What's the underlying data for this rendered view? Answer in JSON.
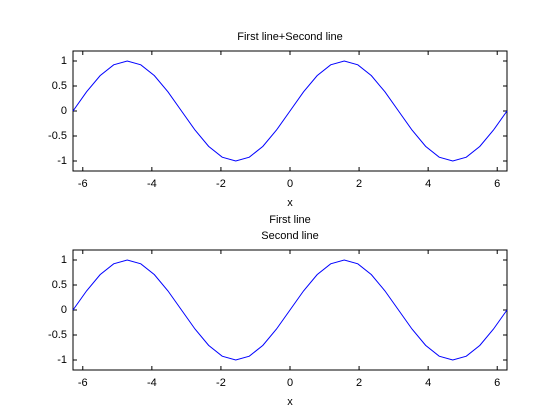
{
  "chart_data": [
    {
      "type": "line",
      "title": [
        "First line+Second line"
      ],
      "xlabel": "x",
      "x": [
        -6.2832,
        -5.8905,
        -5.4978,
        -5.1051,
        -4.7124,
        -4.3197,
        -3.927,
        -3.5343,
        -3.1416,
        -2.7489,
        -2.3562,
        -1.9635,
        -1.5708,
        -1.1781,
        -0.7854,
        -0.3927,
        0,
        0.3927,
        0.7854,
        1.1781,
        1.5708,
        1.9635,
        2.3562,
        2.7489,
        3.1416,
        3.5343,
        3.927,
        4.3197,
        4.7124,
        5.1051,
        5.4978,
        5.8905,
        6.2832
      ],
      "series": [
        {
          "color": "#0000ff",
          "values": [
            0,
            0.3827,
            0.7071,
            0.9239,
            1,
            0.9239,
            0.7071,
            0.3827,
            0,
            -0.3827,
            -0.7071,
            -0.9239,
            -1,
            -0.9239,
            -0.7071,
            -0.3827,
            0,
            0.3827,
            0.7071,
            0.9239,
            1,
            0.9239,
            0.7071,
            0.3827,
            0,
            -0.3827,
            -0.7071,
            -0.9239,
            -1,
            -0.9239,
            -0.7071,
            -0.3827,
            0
          ]
        }
      ],
      "xlim": [
        -6.2832,
        6.2832
      ],
      "ylim": [
        -1.2,
        1.2
      ],
      "xticks": [
        -6,
        -4,
        -2,
        0,
        2,
        4,
        6
      ],
      "yticks": [
        -1,
        -0.5,
        0,
        0.5,
        1
      ]
    },
    {
      "type": "line",
      "title": [
        "First line",
        "Second line"
      ],
      "xlabel": "x",
      "x": [
        -6.2832,
        -5.8905,
        -5.4978,
        -5.1051,
        -4.7124,
        -4.3197,
        -3.927,
        -3.5343,
        -3.1416,
        -2.7489,
        -2.3562,
        -1.9635,
        -1.5708,
        -1.1781,
        -0.7854,
        -0.3927,
        0,
        0.3927,
        0.7854,
        1.1781,
        1.5708,
        1.9635,
        2.3562,
        2.7489,
        3.1416,
        3.5343,
        3.927,
        4.3197,
        4.7124,
        5.1051,
        5.4978,
        5.8905,
        6.2832
      ],
      "series": [
        {
          "color": "#0000ff",
          "values": [
            0,
            0.3827,
            0.7071,
            0.9239,
            1,
            0.9239,
            0.7071,
            0.3827,
            0,
            -0.3827,
            -0.7071,
            -0.9239,
            -1,
            -0.9239,
            -0.7071,
            -0.3827,
            0,
            0.3827,
            0.7071,
            0.9239,
            1,
            0.9239,
            0.7071,
            0.3827,
            0,
            -0.3827,
            -0.7071,
            -0.9239,
            -1,
            -0.9239,
            -0.7071,
            -0.3827,
            0
          ]
        }
      ],
      "xlim": [
        -6.2832,
        6.2832
      ],
      "ylim": [
        -1.2,
        1.2
      ],
      "xticks": [
        -6,
        -4,
        -2,
        0,
        2,
        4,
        6
      ],
      "yticks": [
        -1,
        -0.5,
        0,
        0.5,
        1
      ]
    }
  ]
}
